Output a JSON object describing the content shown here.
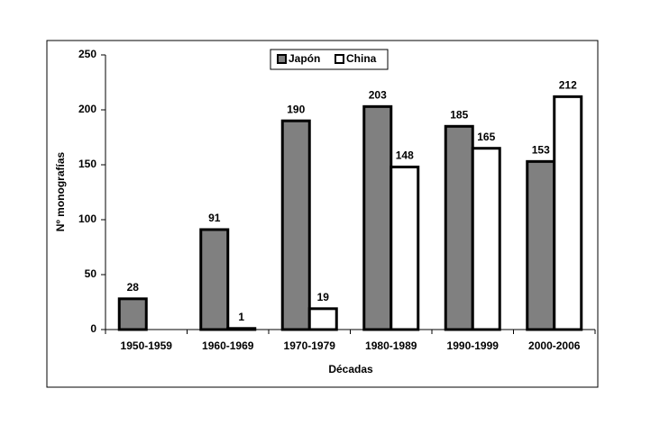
{
  "chart_data": {
    "type": "bar",
    "x_label": "Décadas",
    "y_label": "Nº monografías",
    "categories": [
      "1950-1959",
      "1960-1969",
      "1970-1979",
      "1980-1989",
      "1990-1999",
      "2000-2006"
    ],
    "series": [
      {
        "name": "Japón",
        "color": "#808080",
        "values": [
          28,
          91,
          190,
          203,
          185,
          153
        ]
      },
      {
        "name": "China",
        "color": "#ffffff",
        "values": [
          null,
          1,
          19,
          148,
          165,
          212
        ]
      }
    ],
    "ylim": [
      0,
      250
    ],
    "yticks": [
      0,
      50,
      100,
      150,
      200,
      250
    ],
    "grid": false,
    "legend": "top"
  }
}
